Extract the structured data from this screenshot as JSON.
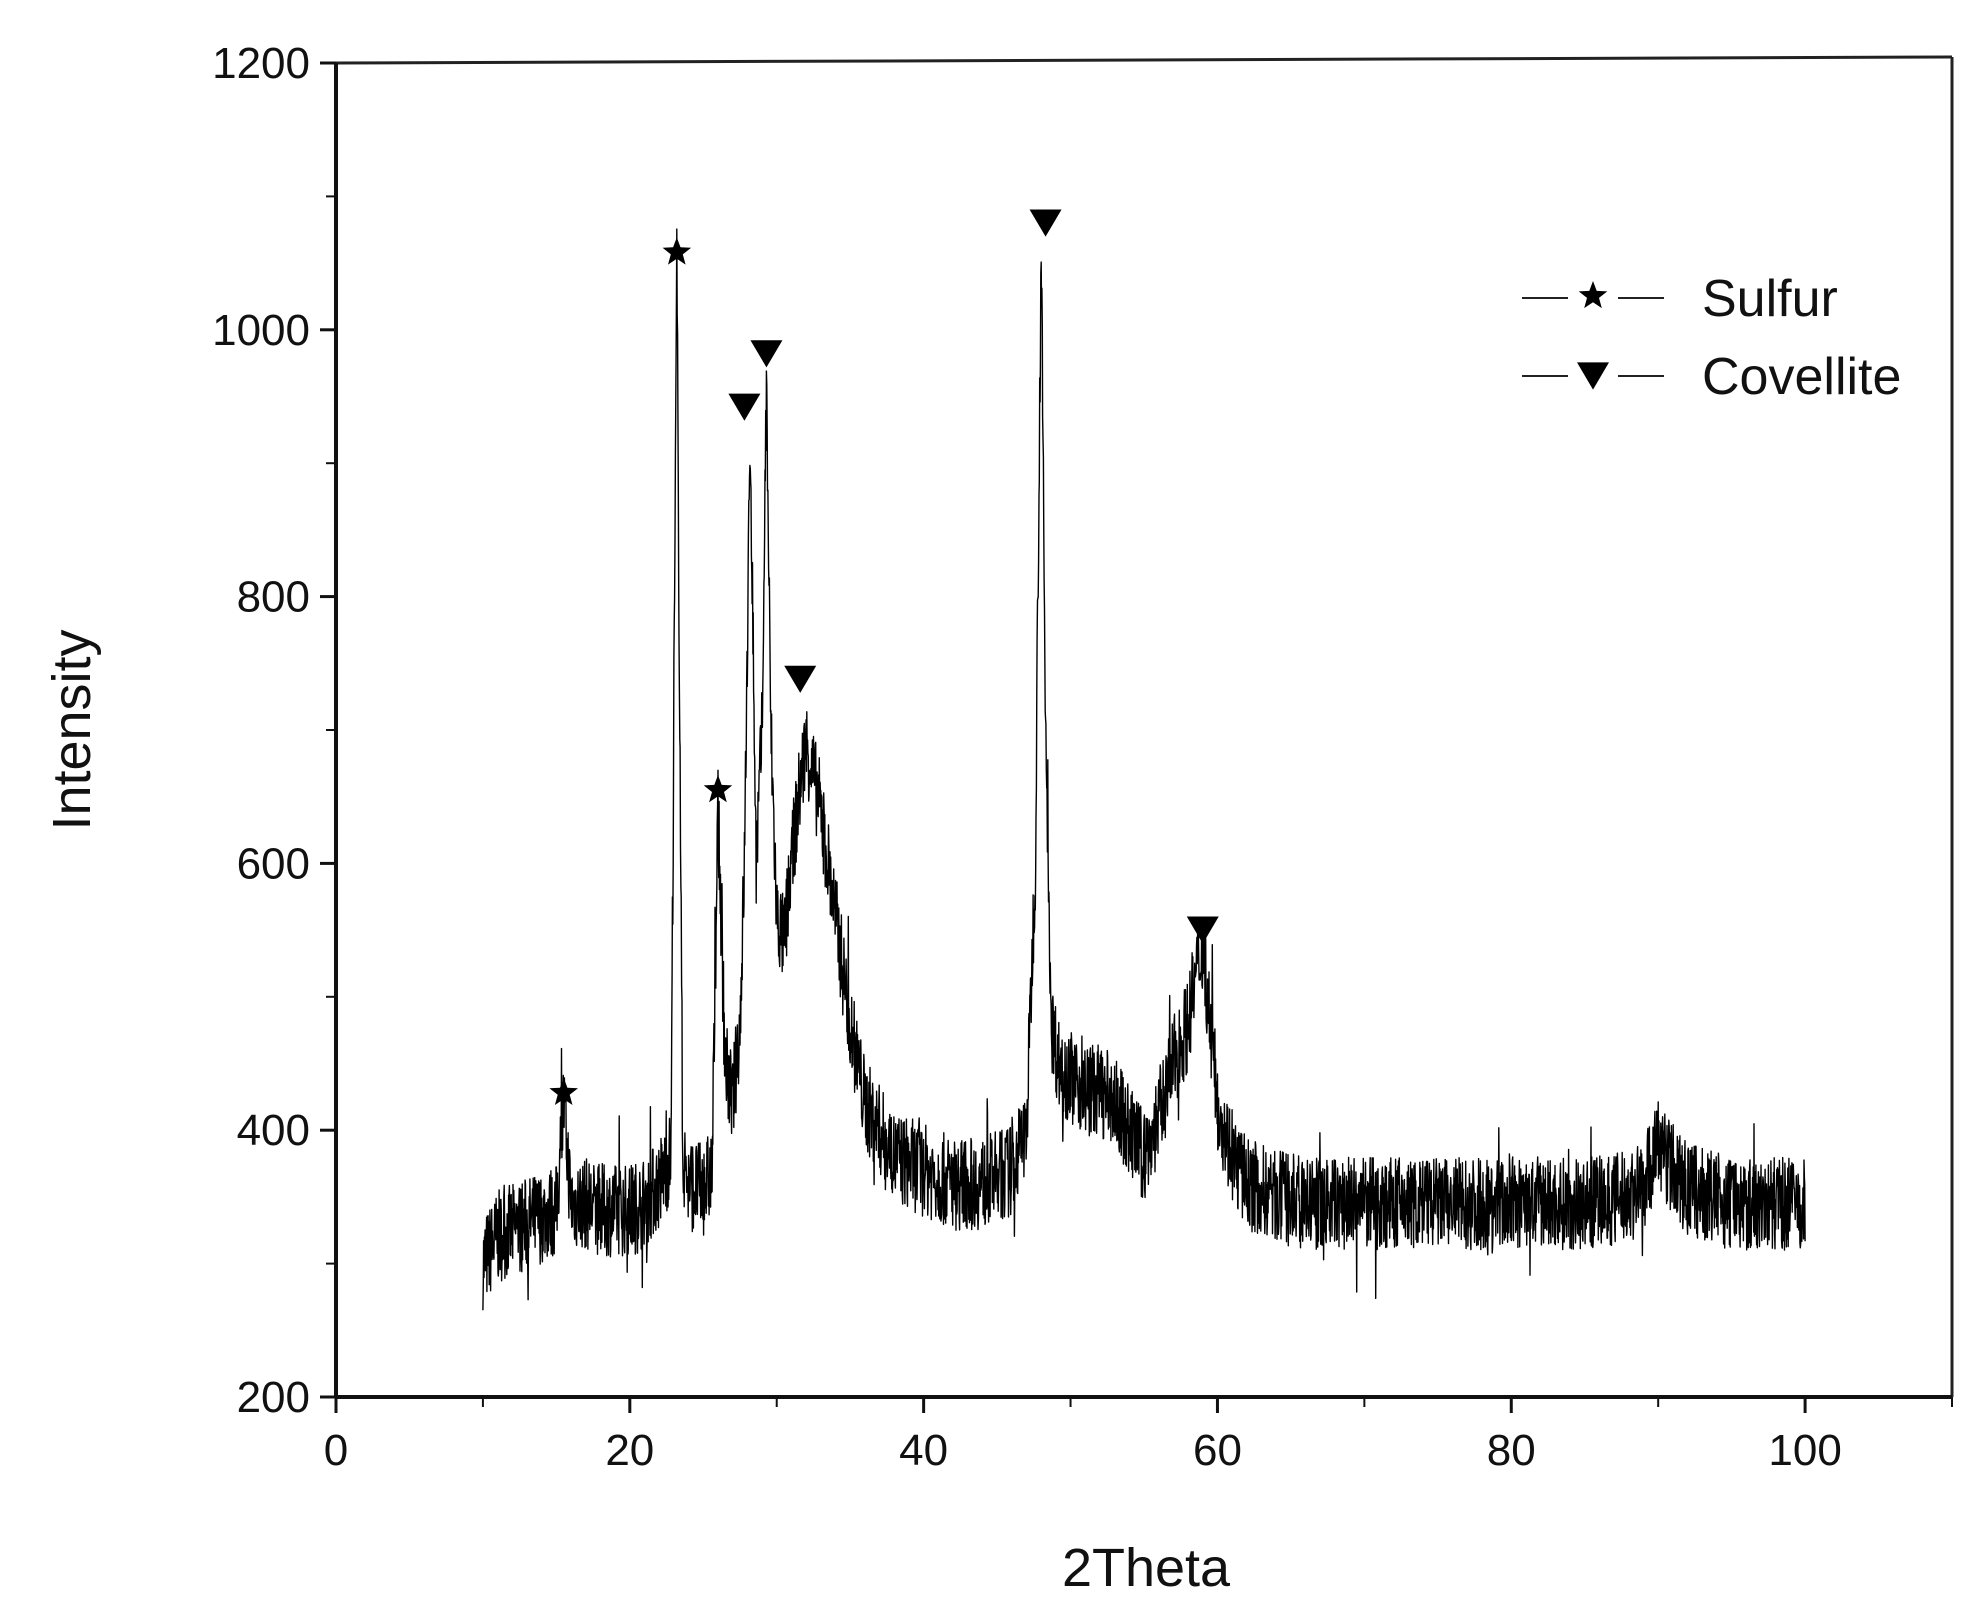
{
  "chart_data": {
    "type": "line",
    "title": "",
    "xlabel": "2Theta",
    "ylabel": "Intensity",
    "xlim": [
      0,
      110
    ],
    "ylim": [
      200,
      1200
    ],
    "x_ticks": [
      0,
      20,
      40,
      60,
      80,
      100
    ],
    "y_ticks": [
      200,
      400,
      600,
      800,
      1000,
      1200
    ],
    "x_minor_step": 10,
    "y_minor_step": 100,
    "grid": false,
    "legend_position": "top-right",
    "series": [
      {
        "type": "line",
        "color": "#000000",
        "x": [
          10,
          11,
          12,
          13,
          14,
          15,
          15.5,
          16,
          17,
          18,
          19,
          20,
          21,
          22,
          22.8,
          23.2,
          23.6,
          24,
          25,
          25.6,
          26,
          26.5,
          27,
          27.5,
          27.8,
          28.2,
          28.6,
          29,
          29.3,
          29.6,
          30,
          30.5,
          31,
          31.5,
          32,
          33,
          34,
          35,
          36,
          37,
          38,
          40,
          42,
          44,
          46,
          47,
          47.6,
          48,
          48.3,
          48.7,
          49.2,
          50,
          51,
          52,
          53,
          54,
          55,
          56,
          57,
          58,
          58.6,
          59,
          59.5,
          60,
          61,
          62,
          64,
          66,
          70,
          75,
          80,
          85,
          88,
          89,
          90,
          91,
          92,
          95,
          100
        ],
        "y": [
          300,
          320,
          325,
          330,
          335,
          340,
          420,
          345,
          345,
          340,
          340,
          340,
          345,
          360,
          380,
          1050,
          380,
          360,
          355,
          370,
          640,
          450,
          420,
          480,
          600,
          920,
          600,
          700,
          960,
          700,
          560,
          540,
          600,
          650,
          690,
          640,
          560,
          480,
          420,
          400,
          380,
          370,
          360,
          360,
          370,
          400,
          600,
          1060,
          700,
          480,
          450,
          440,
          430,
          430,
          420,
          400,
          380,
          410,
          450,
          480,
          520,
          540,
          480,
          420,
          380,
          360,
          350,
          345,
          345,
          345,
          345,
          345,
          350,
          360,
          390,
          370,
          355,
          345,
          345
        ]
      }
    ],
    "markers": [
      {
        "name": "Sulfur",
        "symbol": "star",
        "x": 15.5,
        "y": 428
      },
      {
        "name": "Sulfur",
        "symbol": "star",
        "x": 23.2,
        "y": 1058
      },
      {
        "name": "Sulfur",
        "symbol": "star",
        "x": 26.0,
        "y": 655
      },
      {
        "name": "Covellite",
        "symbol": "down-triangle",
        "x": 27.8,
        "y": 942
      },
      {
        "name": "Covellite",
        "symbol": "down-triangle",
        "x": 29.3,
        "y": 982
      },
      {
        "name": "Covellite",
        "symbol": "down-triangle",
        "x": 31.6,
        "y": 738
      },
      {
        "name": "Covellite",
        "symbol": "down-triangle",
        "x": 48.3,
        "y": 1080
      },
      {
        "name": "Covellite",
        "symbol": "down-triangle",
        "x": 59.0,
        "y": 550
      }
    ],
    "legend": [
      {
        "label": "Sulfur",
        "symbol": "star"
      },
      {
        "label": "Covellite",
        "symbol": "down-triangle"
      }
    ]
  }
}
